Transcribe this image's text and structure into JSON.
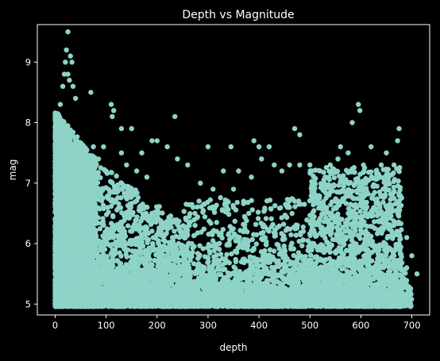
{
  "chart_data": {
    "type": "scatter",
    "title": "Depth vs Magnitude",
    "xlabel": "depth",
    "ylabel": "mag",
    "xlim": [
      -35,
      735
    ],
    "ylim": [
      4.82,
      9.62
    ],
    "xticks": [
      0,
      100,
      200,
      300,
      400,
      500,
      600,
      700
    ],
    "yticks": [
      5,
      6,
      7,
      8,
      9
    ],
    "grid": false,
    "marker_color": "#8dd3c7",
    "background": "#000000",
    "points": [
      [
        25,
        9.5
      ],
      [
        22,
        9.2
      ],
      [
        30,
        9.1
      ],
      [
        20,
        9.0
      ],
      [
        33,
        9.0
      ],
      [
        18,
        8.8
      ],
      [
        25,
        8.8
      ],
      [
        35,
        8.6
      ],
      [
        15,
        8.6
      ],
      [
        28,
        8.7
      ],
      [
        70,
        8.5
      ],
      [
        40,
        8.4
      ],
      [
        10,
        8.3
      ],
      [
        110,
        8.3
      ],
      [
        115,
        8.2
      ],
      [
        112,
        8.1
      ],
      [
        130,
        7.9
      ],
      [
        150,
        7.9
      ],
      [
        235,
        8.1
      ],
      [
        300,
        7.6
      ],
      [
        345,
        7.6
      ],
      [
        400,
        7.6
      ],
      [
        420,
        7.6
      ],
      [
        470,
        7.9
      ],
      [
        480,
        7.8
      ],
      [
        390,
        7.7
      ],
      [
        595,
        8.3
      ],
      [
        598,
        8.2
      ],
      [
        583,
        8.0
      ],
      [
        560,
        7.6
      ],
      [
        575,
        7.5
      ],
      [
        620,
        7.6
      ],
      [
        675,
        7.9
      ],
      [
        672,
        7.7
      ],
      [
        650,
        7.5
      ],
      [
        170,
        7.5
      ],
      [
        190,
        7.7
      ],
      [
        200,
        7.7
      ],
      [
        220,
        7.6
      ],
      [
        240,
        7.4
      ],
      [
        260,
        7.3
      ],
      [
        130,
        7.5
      ],
      [
        140,
        7.3
      ],
      [
        160,
        7.2
      ],
      [
        180,
        7.1
      ],
      [
        100,
        7.2
      ],
      [
        85,
        7.4
      ],
      [
        95,
        7.6
      ],
      [
        75,
        7.6
      ],
      [
        330,
        7.2
      ],
      [
        360,
        7.2
      ],
      [
        385,
        7.1
      ],
      [
        405,
        7.4
      ],
      [
        430,
        7.3
      ],
      [
        445,
        7.2
      ],
      [
        460,
        7.3
      ],
      [
        480,
        7.3
      ],
      [
        500,
        7.3
      ],
      [
        520,
        7.2
      ],
      [
        540,
        7.3
      ],
      [
        555,
        7.4
      ],
      [
        605,
        7.3
      ],
      [
        630,
        7.2
      ],
      [
        640,
        7.3
      ],
      [
        655,
        7.1
      ],
      [
        665,
        7.3
      ],
      [
        285,
        7.0
      ],
      [
        310,
        6.9
      ],
      [
        350,
        6.9
      ],
      [
        510,
        7.0
      ],
      [
        530,
        7.1
      ],
      [
        590,
        7.0
      ],
      [
        610,
        7.0
      ],
      [
        350,
        6.6
      ],
      [
        370,
        6.7
      ],
      [
        380,
        6.5
      ],
      [
        460,
        6.6
      ],
      [
        470,
        6.7
      ],
      [
        530,
        6.5
      ],
      [
        550,
        6.6
      ],
      [
        575,
        6.5
      ],
      [
        620,
        6.5
      ],
      [
        660,
        6.6
      ],
      [
        690,
        6.1
      ],
      [
        700,
        5.8
      ],
      [
        710,
        5.5
      ],
      [
        680,
        5.2
      ],
      [
        690,
        5.6
      ],
      [
        665,
        5.8
      ],
      [
        675,
        6.0
      ],
      [
        685,
        5.4
      ],
      [
        672,
        5.0
      ],
      [
        680,
        5.0
      ],
      [
        0,
        7.3
      ],
      [
        2,
        6.8
      ],
      [
        4,
        6.5
      ],
      [
        0,
        5.8
      ],
      [
        5,
        5.5
      ]
    ]
  }
}
